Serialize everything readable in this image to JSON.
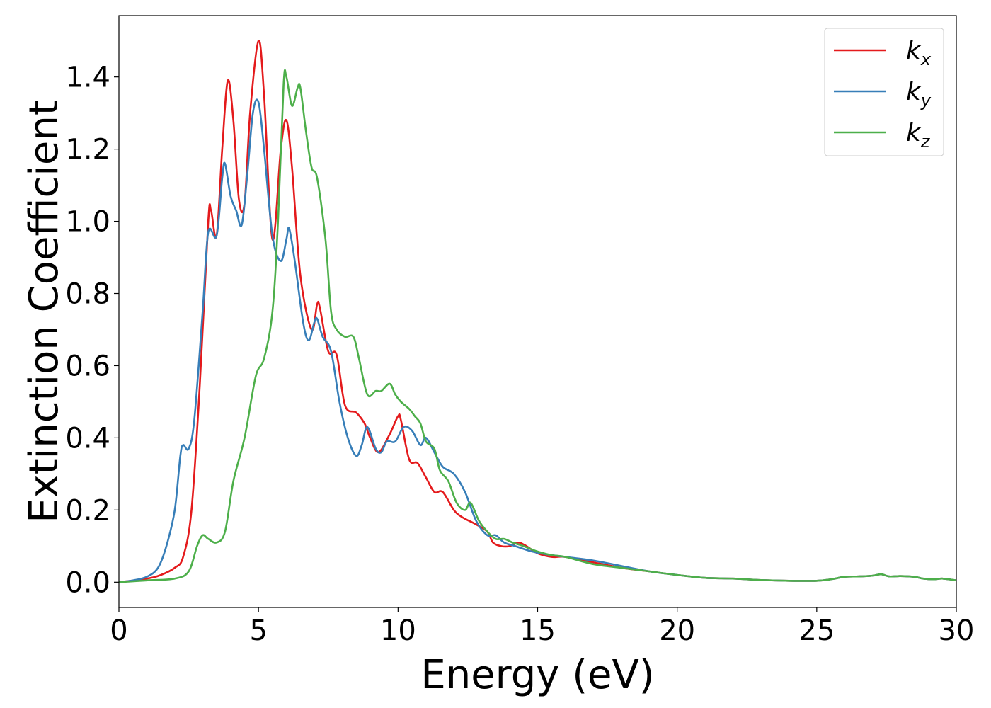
{
  "chart_data": {
    "type": "line",
    "title": "",
    "xlabel": "Energy (eV)",
    "ylabel": "Extinction Coefficient",
    "xlim": [
      0,
      30
    ],
    "ylim": [
      -0.07,
      1.57
    ],
    "xticks": [
      0,
      5,
      10,
      15,
      20,
      25,
      30
    ],
    "xtick_labels": [
      "0",
      "5",
      "10",
      "15",
      "20",
      "25",
      "30"
    ],
    "yticks": [
      0.0,
      0.2,
      0.4,
      0.6,
      0.8,
      1.0,
      1.2,
      1.4
    ],
    "ytick_labels": [
      "0.0",
      "0.2",
      "0.4",
      "0.6",
      "0.8",
      "1.0",
      "1.2",
      "1.4"
    ],
    "grid": false,
    "legend_position": "top-right",
    "series": [
      {
        "name": "k_x",
        "label_base": "k",
        "label_sub": "x",
        "color": "#e41a1c",
        "points": [
          [
            0,
            0
          ],
          [
            1,
            0.01
          ],
          [
            1.5,
            0.02
          ],
          [
            2,
            0.04
          ],
          [
            2.3,
            0.07
          ],
          [
            2.6,
            0.2
          ],
          [
            2.9,
            0.55
          ],
          [
            3.2,
            1.0
          ],
          [
            3.3,
            1.03
          ],
          [
            3.5,
            0.96
          ],
          [
            3.7,
            1.2
          ],
          [
            3.9,
            1.39
          ],
          [
            4.1,
            1.28
          ],
          [
            4.3,
            1.06
          ],
          [
            4.5,
            1.05
          ],
          [
            4.7,
            1.3
          ],
          [
            5.0,
            1.5
          ],
          [
            5.2,
            1.35
          ],
          [
            5.5,
            0.95
          ],
          [
            5.8,
            1.2
          ],
          [
            6.0,
            1.28
          ],
          [
            6.2,
            1.15
          ],
          [
            6.5,
            0.85
          ],
          [
            6.9,
            0.7
          ],
          [
            7.1,
            0.77
          ],
          [
            7.2,
            0.76
          ],
          [
            7.5,
            0.64
          ],
          [
            7.8,
            0.63
          ],
          [
            8.1,
            0.49
          ],
          [
            8.5,
            0.47
          ],
          [
            8.8,
            0.44
          ],
          [
            9.0,
            0.4
          ],
          [
            9.3,
            0.36
          ],
          [
            9.7,
            0.41
          ],
          [
            10.0,
            0.46
          ],
          [
            10.1,
            0.45
          ],
          [
            10.4,
            0.34
          ],
          [
            10.7,
            0.33
          ],
          [
            11.0,
            0.29
          ],
          [
            11.3,
            0.25
          ],
          [
            11.6,
            0.25
          ],
          [
            12.0,
            0.2
          ],
          [
            12.3,
            0.18
          ],
          [
            12.8,
            0.16
          ],
          [
            13.2,
            0.14
          ],
          [
            13.4,
            0.11
          ],
          [
            13.7,
            0.1
          ],
          [
            14.0,
            0.1
          ],
          [
            14.3,
            0.11
          ],
          [
            14.6,
            0.1
          ],
          [
            15.0,
            0.08
          ],
          [
            15.5,
            0.07
          ],
          [
            16.0,
            0.07
          ],
          [
            17.0,
            0.055
          ],
          [
            18.0,
            0.04
          ],
          [
            19.0,
            0.03
          ],
          [
            20.0,
            0.02
          ],
          [
            21.0,
            0.012
          ],
          [
            22.0,
            0.01
          ],
          [
            23.0,
            0.006
          ],
          [
            24.0,
            0.004
          ],
          [
            25.0,
            0.004
          ],
          [
            25.5,
            0.008
          ],
          [
            26.0,
            0.015
          ],
          [
            26.5,
            0.016
          ],
          [
            27.0,
            0.018
          ],
          [
            27.3,
            0.022
          ],
          [
            27.6,
            0.016
          ],
          [
            28.0,
            0.017
          ],
          [
            28.5,
            0.015
          ],
          [
            28.8,
            0.01
          ],
          [
            29.2,
            0.008
          ],
          [
            29.5,
            0.01
          ],
          [
            30.0,
            0.005
          ]
        ]
      },
      {
        "name": "k_y",
        "label_base": "k",
        "label_sub": "y",
        "color": "#377eb8",
        "points": [
          [
            0,
            0
          ],
          [
            0.5,
            0.005
          ],
          [
            1.0,
            0.015
          ],
          [
            1.4,
            0.04
          ],
          [
            1.7,
            0.1
          ],
          [
            2.0,
            0.2
          ],
          [
            2.2,
            0.35
          ],
          [
            2.3,
            0.38
          ],
          [
            2.5,
            0.37
          ],
          [
            2.7,
            0.45
          ],
          [
            3.0,
            0.75
          ],
          [
            3.2,
            0.97
          ],
          [
            3.5,
            0.96
          ],
          [
            3.7,
            1.12
          ],
          [
            3.8,
            1.16
          ],
          [
            4.0,
            1.07
          ],
          [
            4.2,
            1.03
          ],
          [
            4.4,
            0.99
          ],
          [
            4.6,
            1.13
          ],
          [
            4.8,
            1.3
          ],
          [
            5.0,
            1.33
          ],
          [
            5.2,
            1.2
          ],
          [
            5.5,
            0.96
          ],
          [
            5.8,
            0.89
          ],
          [
            6.0,
            0.95
          ],
          [
            6.1,
            0.98
          ],
          [
            6.3,
            0.89
          ],
          [
            6.6,
            0.72
          ],
          [
            6.8,
            0.67
          ],
          [
            7.0,
            0.72
          ],
          [
            7.1,
            0.73
          ],
          [
            7.3,
            0.68
          ],
          [
            7.6,
            0.64
          ],
          [
            7.9,
            0.5
          ],
          [
            8.2,
            0.4
          ],
          [
            8.5,
            0.35
          ],
          [
            8.7,
            0.38
          ],
          [
            8.9,
            0.43
          ],
          [
            9.2,
            0.37
          ],
          [
            9.4,
            0.36
          ],
          [
            9.6,
            0.39
          ],
          [
            9.9,
            0.39
          ],
          [
            10.2,
            0.43
          ],
          [
            10.5,
            0.42
          ],
          [
            10.8,
            0.38
          ],
          [
            11.0,
            0.4
          ],
          [
            11.3,
            0.36
          ],
          [
            11.6,
            0.32
          ],
          [
            12.0,
            0.3
          ],
          [
            12.4,
            0.25
          ],
          [
            12.8,
            0.17
          ],
          [
            13.2,
            0.13
          ],
          [
            13.5,
            0.13
          ],
          [
            13.8,
            0.11
          ],
          [
            14.2,
            0.1
          ],
          [
            14.8,
            0.085
          ],
          [
            15.5,
            0.075
          ],
          [
            16.0,
            0.07
          ],
          [
            17.0,
            0.06
          ],
          [
            18.0,
            0.045
          ],
          [
            19.0,
            0.03
          ],
          [
            20.0,
            0.02
          ],
          [
            21.0,
            0.012
          ],
          [
            22.0,
            0.01
          ],
          [
            23.0,
            0.006
          ],
          [
            24.0,
            0.004
          ],
          [
            25.0,
            0.004
          ],
          [
            25.5,
            0.008
          ],
          [
            26.0,
            0.015
          ],
          [
            26.5,
            0.016
          ],
          [
            27.0,
            0.018
          ],
          [
            27.3,
            0.022
          ],
          [
            27.6,
            0.016
          ],
          [
            28.0,
            0.017
          ],
          [
            28.5,
            0.015
          ],
          [
            28.8,
            0.01
          ],
          [
            29.2,
            0.008
          ],
          [
            29.5,
            0.01
          ],
          [
            30.0,
            0.005
          ]
        ]
      },
      {
        "name": "k_z",
        "label_base": "k",
        "label_sub": "z",
        "color": "#4daf4a",
        "points": [
          [
            0,
            0
          ],
          [
            1.0,
            0.005
          ],
          [
            2.0,
            0.01
          ],
          [
            2.5,
            0.03
          ],
          [
            2.8,
            0.1
          ],
          [
            3.0,
            0.13
          ],
          [
            3.2,
            0.12
          ],
          [
            3.5,
            0.11
          ],
          [
            3.8,
            0.14
          ],
          [
            4.1,
            0.28
          ],
          [
            4.5,
            0.4
          ],
          [
            4.9,
            0.57
          ],
          [
            5.2,
            0.62
          ],
          [
            5.5,
            0.75
          ],
          [
            5.7,
            1.0
          ],
          [
            5.9,
            1.38
          ],
          [
            6.0,
            1.4
          ],
          [
            6.2,
            1.32
          ],
          [
            6.4,
            1.37
          ],
          [
            6.5,
            1.37
          ],
          [
            6.7,
            1.25
          ],
          [
            6.9,
            1.15
          ],
          [
            7.1,
            1.12
          ],
          [
            7.4,
            0.95
          ],
          [
            7.6,
            0.75
          ],
          [
            7.8,
            0.7
          ],
          [
            8.1,
            0.68
          ],
          [
            8.4,
            0.68
          ],
          [
            8.6,
            0.62
          ],
          [
            8.9,
            0.52
          ],
          [
            9.2,
            0.53
          ],
          [
            9.4,
            0.53
          ],
          [
            9.7,
            0.55
          ],
          [
            9.9,
            0.52
          ],
          [
            10.1,
            0.5
          ],
          [
            10.4,
            0.48
          ],
          [
            10.6,
            0.46
          ],
          [
            10.8,
            0.44
          ],
          [
            11.0,
            0.39
          ],
          [
            11.3,
            0.37
          ],
          [
            11.5,
            0.31
          ],
          [
            11.8,
            0.28
          ],
          [
            12.1,
            0.22
          ],
          [
            12.4,
            0.2
          ],
          [
            12.6,
            0.22
          ],
          [
            12.9,
            0.17
          ],
          [
            13.2,
            0.14
          ],
          [
            13.5,
            0.12
          ],
          [
            13.8,
            0.12
          ],
          [
            14.1,
            0.11
          ],
          [
            14.5,
            0.1
          ],
          [
            15.0,
            0.085
          ],
          [
            15.5,
            0.075
          ],
          [
            16.0,
            0.07
          ],
          [
            17.0,
            0.05
          ],
          [
            18.0,
            0.04
          ],
          [
            19.0,
            0.03
          ],
          [
            20.0,
            0.02
          ],
          [
            21.0,
            0.012
          ],
          [
            22.0,
            0.01
          ],
          [
            23.0,
            0.006
          ],
          [
            24.0,
            0.004
          ],
          [
            25.0,
            0.004
          ],
          [
            25.5,
            0.008
          ],
          [
            26.0,
            0.015
          ],
          [
            26.5,
            0.016
          ],
          [
            27.0,
            0.018
          ],
          [
            27.3,
            0.022
          ],
          [
            27.6,
            0.016
          ],
          [
            28.0,
            0.017
          ],
          [
            28.5,
            0.015
          ],
          [
            28.8,
            0.01
          ],
          [
            29.2,
            0.008
          ],
          [
            29.5,
            0.01
          ],
          [
            30.0,
            0.005
          ]
        ]
      }
    ]
  }
}
